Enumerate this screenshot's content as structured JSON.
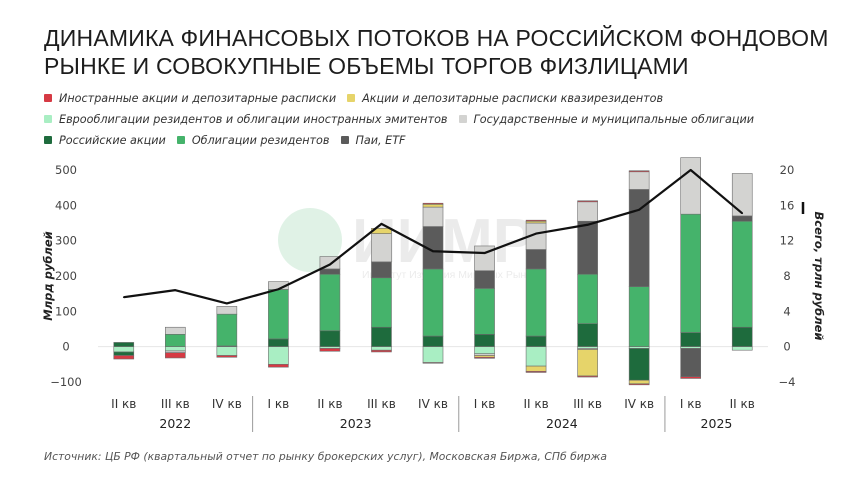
{
  "title": "Динамика финансовых потоков на российском фондовом рынке и совокупные объемы торгов физлицами",
  "title_lines": [
    "ДИНАМИКА ФИНАНСОВЫХ ПОТОКОВ НА РОССИЙСКОМ ФОНДОВОМ",
    "РЫНКЕ И СОВОКУПНЫЕ ОБЪЕМЫ ТОРГОВ ФИЗЛИЦАМИ"
  ],
  "source": "Источник: ЦБ РФ (квартальный отчет по рынку брокерских услуг), Московская Биржа, СПб биржа",
  "watermark": {
    "main": "ИИМР",
    "sub": "Институт Изучения Мировых Рынков"
  },
  "colors": {
    "foreign": "#d63a44",
    "quasi": "#e6d46a",
    "euro": "#a9eec3",
    "gov": "#d3d3d1",
    "rus_shares": "#1e6b3d",
    "rus_bonds": "#45b36b",
    "funds": "#5b5b5b",
    "line": "#111111"
  },
  "legend_rows": [
    [
      {
        "key": "foreign",
        "label": "Иностранные акции и депозитарные расписки"
      },
      {
        "key": "quasi",
        "label": "Акции и депозитарные расписки квазирезидентов"
      }
    ],
    [
      {
        "key": "euro",
        "label": "Еврооблигации резидентов и облигации иностранных эмитентов"
      },
      {
        "key": "gov",
        "label": "Государственные и муниципальные облигации"
      }
    ],
    [
      {
        "key": "rus_shares",
        "label": "Российские акции"
      },
      {
        "key": "rus_bonds",
        "label": "Облигации резидентов"
      },
      {
        "key": "funds",
        "label": "Паи, ETF"
      }
    ]
  ],
  "chart_data": {
    "type": "bar",
    "stacked": true,
    "categories": [
      "II кв",
      "III кв",
      "IV кв",
      "I кв",
      "II кв",
      "III кв",
      "IV кв",
      "I кв",
      "II кв",
      "III кв",
      "IV кв",
      "I кв",
      "II кв"
    ],
    "groups": [
      {
        "label": "2022",
        "from": 0,
        "to": 2
      },
      {
        "label": "2023",
        "from": 3,
        "to": 6
      },
      {
        "label": "2024",
        "from": 7,
        "to": 10
      },
      {
        "label": "2025",
        "from": 11,
        "to": 12
      }
    ],
    "ylabel": "Млрд рублей",
    "y2label": "Всего, трлн рублей",
    "ylim": [
      -100,
      500
    ],
    "y2lim": [
      -4,
      20
    ],
    "yticks": [
      -100,
      0,
      100,
      200,
      300,
      400,
      500
    ],
    "y2ticks": [
      -4,
      0,
      4,
      8,
      12,
      16,
      20
    ],
    "series": [
      {
        "key": "rus_shares",
        "name": "Российские акции",
        "values": [
          12,
          0,
          2,
          22,
          45,
          55,
          30,
          35,
          30,
          65,
          0,
          40,
          55
        ]
      },
      {
        "key": "rus_bonds",
        "name": "Облигации резидентов",
        "values": [
          0,
          35,
          90,
          140,
          160,
          140,
          190,
          130,
          190,
          140,
          170,
          335,
          300
        ]
      },
      {
        "key": "funds",
        "name": "Паи, ETF",
        "values": [
          0,
          0,
          0,
          0,
          15,
          45,
          120,
          50,
          55,
          150,
          275,
          0,
          15
        ]
      },
      {
        "key": "gov",
        "name": "Государственные и муниципальные облигации",
        "values": [
          0,
          20,
          22,
          22,
          35,
          80,
          55,
          70,
          75,
          55,
          50,
          160,
          120
        ]
      },
      {
        "key": "quasi",
        "name": "Акции и депозитарные расписки квазирезидентов",
        "values": [
          0,
          0,
          0,
          0,
          0,
          15,
          8,
          0,
          5,
          0,
          0,
          0,
          0
        ]
      },
      {
        "key": "foreign",
        "name": "Иностранные акции и депозитарные расписки",
        "values": [
          0,
          0,
          0,
          0,
          0,
          0,
          3,
          0,
          3,
          3,
          3,
          0,
          0
        ]
      },
      {
        "key": "euro",
        "name": "Еврооблигации резидентов и облигации иностранных эмитентов",
        "values": [
          -15,
          -12,
          -25,
          -50,
          -5,
          -10,
          -45,
          -20,
          -55,
          -5,
          -5,
          -5,
          -10
        ]
      },
      {
        "key": "rus_shares_neg",
        "color_key": "rus_shares",
        "name": "Российские акции (отток)",
        "values": [
          -10,
          0,
          0,
          0,
          0,
          0,
          0,
          0,
          0,
          0,
          -90,
          0,
          0
        ]
      },
      {
        "key": "funds_neg",
        "color_key": "funds",
        "name": "Паи, ETF (отток)",
        "values": [
          0,
          0,
          0,
          0,
          0,
          0,
          0,
          0,
          0,
          0,
          0,
          -80,
          0
        ]
      },
      {
        "key": "gov_neg",
        "color_key": "gov",
        "name": "Государственные и муниципальные облигации (отток)",
        "values": [
          0,
          -5,
          0,
          0,
          0,
          0,
          0,
          -5,
          0,
          -3,
          0,
          0,
          0
        ]
      },
      {
        "key": "quasi_neg",
        "color_key": "quasi",
        "name": "Акции и депозитарные расписки квазирезидентов (отток)",
        "values": [
          0,
          0,
          0,
          0,
          0,
          0,
          0,
          -5,
          -15,
          -75,
          -10,
          0,
          0
        ]
      },
      {
        "key": "foreign_neg",
        "color_key": "foreign",
        "name": "Иностранные акции и депозитарные расписки (отток)",
        "values": [
          -10,
          -15,
          -5,
          -8,
          -8,
          -5,
          -2,
          -3,
          -3,
          -3,
          -3,
          -5,
          0
        ]
      }
    ],
    "line": {
      "name": "Всего, трлн рублей",
      "axis": "right",
      "values": [
        5.6,
        6.4,
        4.9,
        6.5,
        9.3,
        13.9,
        10.8,
        10.6,
        12.8,
        13.8,
        15.5,
        20.0,
        15.1
      ]
    }
  }
}
